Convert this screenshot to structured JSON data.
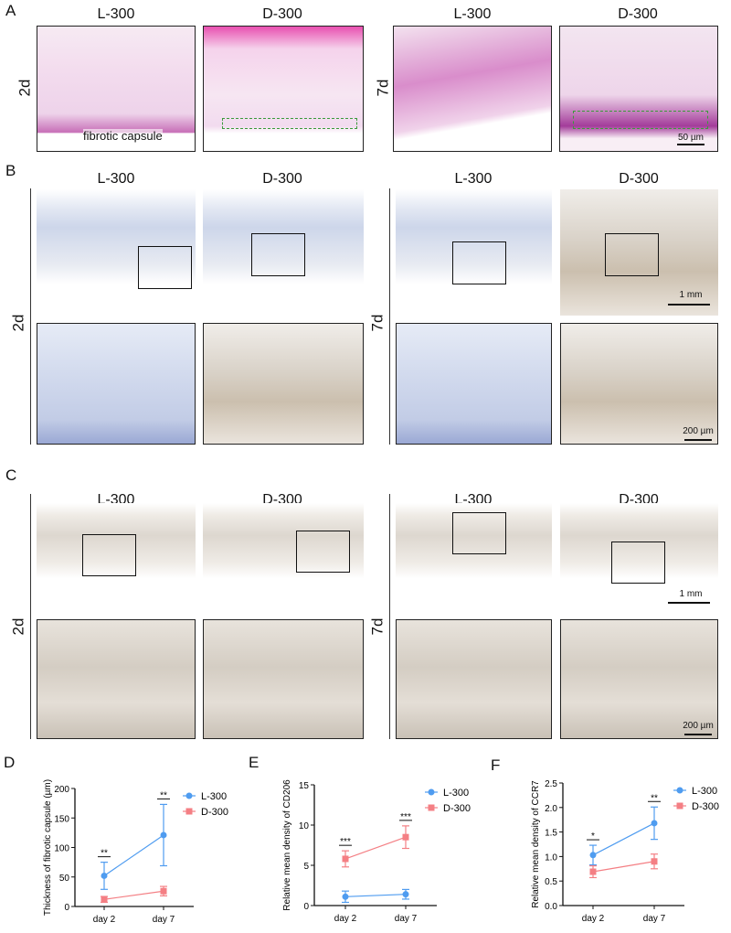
{
  "panels": {
    "A": {
      "label": "A",
      "titles": [
        "L-300",
        "D-300",
        "L-300",
        "D-300"
      ],
      "times": [
        "2d",
        "7d"
      ],
      "annotation": "fibrotic capsule",
      "scale": "50 µm"
    },
    "B": {
      "label": "B",
      "titles": [
        "L-300",
        "D-300",
        "L-300",
        "D-300"
      ],
      "times": [
        "2d",
        "7d"
      ],
      "scale_low": "1 mm",
      "scale_high": "200 µm"
    },
    "C": {
      "label": "C",
      "titles": [
        "L-300",
        "D-300",
        "L-300",
        "D-300"
      ],
      "times": [
        "2d",
        "7d"
      ],
      "scale_low": "1 mm",
      "scale_high": "200 µm"
    },
    "D": {
      "label": "D"
    },
    "E": {
      "label": "E"
    },
    "F": {
      "label": "F"
    }
  },
  "colors": {
    "L-300": "#4f9cf0",
    "D-300": "#f47f84"
  },
  "chart_data": [
    {
      "type": "line",
      "panel": "D",
      "ylabel": "Thickness of fibrotic capsule (µm)",
      "xlabel": "",
      "categories": [
        "day 2",
        "day 7"
      ],
      "ylim": [
        0,
        200
      ],
      "yticks": [
        "0",
        "50",
        "100",
        "150",
        "200"
      ],
      "legend": "top-right",
      "grid": false,
      "series": [
        {
          "name": "L-300",
          "marker": "circle",
          "values": [
            52,
            121
          ],
          "errors": [
            23,
            52
          ]
        },
        {
          "name": "D-300",
          "marker": "square",
          "values": [
            12,
            26
          ],
          "errors": [
            5,
            8
          ]
        }
      ],
      "significance": [
        "**",
        "**"
      ]
    },
    {
      "type": "line",
      "panel": "E",
      "ylabel": "Relative mean density of CD206",
      "xlabel": "",
      "categories": [
        "day 2",
        "day 7"
      ],
      "ylim": [
        0,
        15
      ],
      "yticks": [
        "0",
        "5",
        "10",
        "15"
      ],
      "legend": "top-right",
      "grid": false,
      "series": [
        {
          "name": "L-300",
          "marker": "circle",
          "values": [
            1.1,
            1.4
          ],
          "errors": [
            0.7,
            0.6
          ]
        },
        {
          "name": "D-300",
          "marker": "square",
          "values": [
            5.8,
            8.5
          ],
          "errors": [
            1.0,
            1.4
          ]
        }
      ],
      "significance": [
        "***",
        "***"
      ]
    },
    {
      "type": "line",
      "panel": "F",
      "ylabel": "Relative mean density of CCR7",
      "xlabel": "",
      "categories": [
        "day 2",
        "day 7"
      ],
      "ylim": [
        0,
        2.5
      ],
      "yticks": [
        "0.0",
        "0.5",
        "1.0",
        "1.5",
        "2.0",
        "2.5"
      ],
      "legend": "top-right",
      "grid": false,
      "series": [
        {
          "name": "L-300",
          "marker": "circle",
          "values": [
            1.03,
            1.68
          ],
          "errors": [
            0.2,
            0.33
          ]
        },
        {
          "name": "D-300",
          "marker": "square",
          "values": [
            0.69,
            0.9
          ],
          "errors": [
            0.12,
            0.15
          ]
        }
      ],
      "significance": [
        "*",
        "**"
      ]
    }
  ]
}
